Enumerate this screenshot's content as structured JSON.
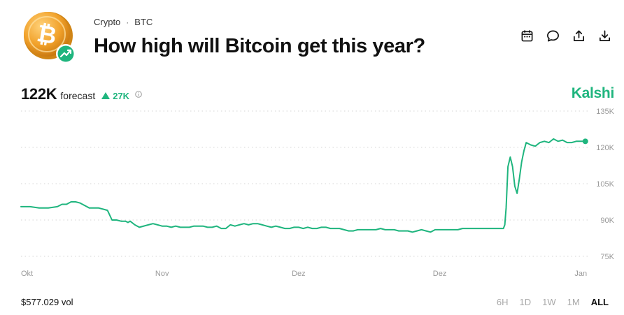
{
  "header": {
    "category": "Crypto",
    "separator": "·",
    "subcategory": "BTC",
    "title": "How high will Bitcoin get this year?",
    "logo_icon": "bitcoin-coin-icon",
    "logo_badge_icon": "trending-up-icon",
    "actions": [
      {
        "name": "calendar-button",
        "icon": "calendar-icon"
      },
      {
        "name": "comment-button",
        "icon": "speech-bubble-icon"
      },
      {
        "name": "share-button",
        "icon": "share-upload-icon"
      },
      {
        "name": "download-button",
        "icon": "download-icon"
      }
    ]
  },
  "forecast": {
    "value": "122K",
    "label": "forecast",
    "change": "27K",
    "change_direction": "up",
    "info_icon": "info-icon"
  },
  "brand": "Kalshi",
  "colors": {
    "accent": "#1fb57e",
    "text": "#111111",
    "muted": "#a8a8a8",
    "grid": "#d6d6d6"
  },
  "chart_data": {
    "type": "line",
    "y_tick_labels": [
      "135K",
      "120K",
      "105K",
      "90K",
      "75K"
    ],
    "y_ticks": [
      135000,
      120000,
      105000,
      90000,
      75000
    ],
    "ylim": [
      75000,
      135000
    ],
    "x_tick_labels": [
      "Okt",
      "Nov",
      "Dez",
      "Dez",
      "Jan"
    ],
    "x_ticks": [
      0,
      31,
      61,
      92,
      123
    ],
    "xlim": [
      0,
      124.5
    ],
    "grid": "horizontal-dotted",
    "series": [
      {
        "x": [
          0,
          2,
          4,
          6,
          8,
          9,
          10,
          11,
          12,
          13,
          14,
          15,
          16,
          17,
          18,
          19,
          20,
          21,
          22,
          23,
          23.5,
          24,
          25,
          26,
          28,
          29,
          30,
          31,
          32,
          33,
          34,
          35,
          36,
          37,
          38,
          39,
          40,
          41,
          42,
          43,
          44,
          45,
          46,
          47,
          48,
          49,
          50,
          51,
          52,
          53,
          54,
          55,
          56,
          57,
          58,
          59,
          60,
          61,
          62,
          63,
          64,
          65,
          66,
          67,
          68,
          69,
          70,
          71,
          72,
          73,
          74,
          75,
          76,
          77,
          78,
          79,
          80,
          81,
          82,
          83,
          84,
          85,
          86,
          87,
          88,
          89,
          90,
          91,
          92,
          93,
          94,
          95,
          96,
          97,
          98,
          99,
          100,
          101,
          102,
          103,
          104,
          105,
          106,
          106.3,
          106.6,
          107,
          107.5,
          108,
          108.5,
          109,
          109.5,
          110,
          110.5,
          111,
          112,
          113,
          114,
          115,
          116,
          117,
          118,
          119,
          120,
          121,
          122,
          123,
          124
        ],
        "y": [
          95500,
          95500,
          95000,
          95000,
          95500,
          96500,
          96500,
          97500,
          97500,
          97000,
          96000,
          95000,
          95000,
          95000,
          94500,
          94000,
          90000,
          90000,
          89500,
          89500,
          89000,
          89500,
          88000,
          87000,
          88000,
          88500,
          88000,
          87500,
          87500,
          87000,
          87500,
          87000,
          87000,
          87000,
          87500,
          87500,
          87500,
          87000,
          87000,
          87500,
          86500,
          86500,
          88000,
          87500,
          88000,
          88500,
          88000,
          88500,
          88500,
          88000,
          87500,
          87000,
          87500,
          87000,
          86500,
          86500,
          87000,
          87000,
          86500,
          87000,
          86500,
          86500,
          87000,
          87000,
          86500,
          86500,
          86500,
          86000,
          85500,
          85500,
          86000,
          86000,
          86000,
          86000,
          86000,
          86500,
          86000,
          86000,
          86000,
          85500,
          85500,
          85500,
          85000,
          85500,
          86000,
          85500,
          85000,
          86000,
          86000,
          86000,
          86000,
          86000,
          86000,
          86500,
          86500,
          86500,
          86500,
          86500,
          86500,
          86500,
          86500,
          86500,
          86500,
          88000,
          95000,
          112000,
          116000,
          112000,
          104000,
          101000,
          107000,
          114000,
          118500,
          122000,
          121000,
          120500,
          122000,
          122500,
          122000,
          123500,
          122500,
          123000,
          122000,
          122000,
          122500,
          122500,
          122500
        ]
      }
    ]
  },
  "footer": {
    "volume": "$577.029 vol",
    "ranges": [
      {
        "label": "6H",
        "active": false
      },
      {
        "label": "1D",
        "active": false
      },
      {
        "label": "1W",
        "active": false
      },
      {
        "label": "1M",
        "active": false
      },
      {
        "label": "ALL",
        "active": true
      }
    ]
  }
}
